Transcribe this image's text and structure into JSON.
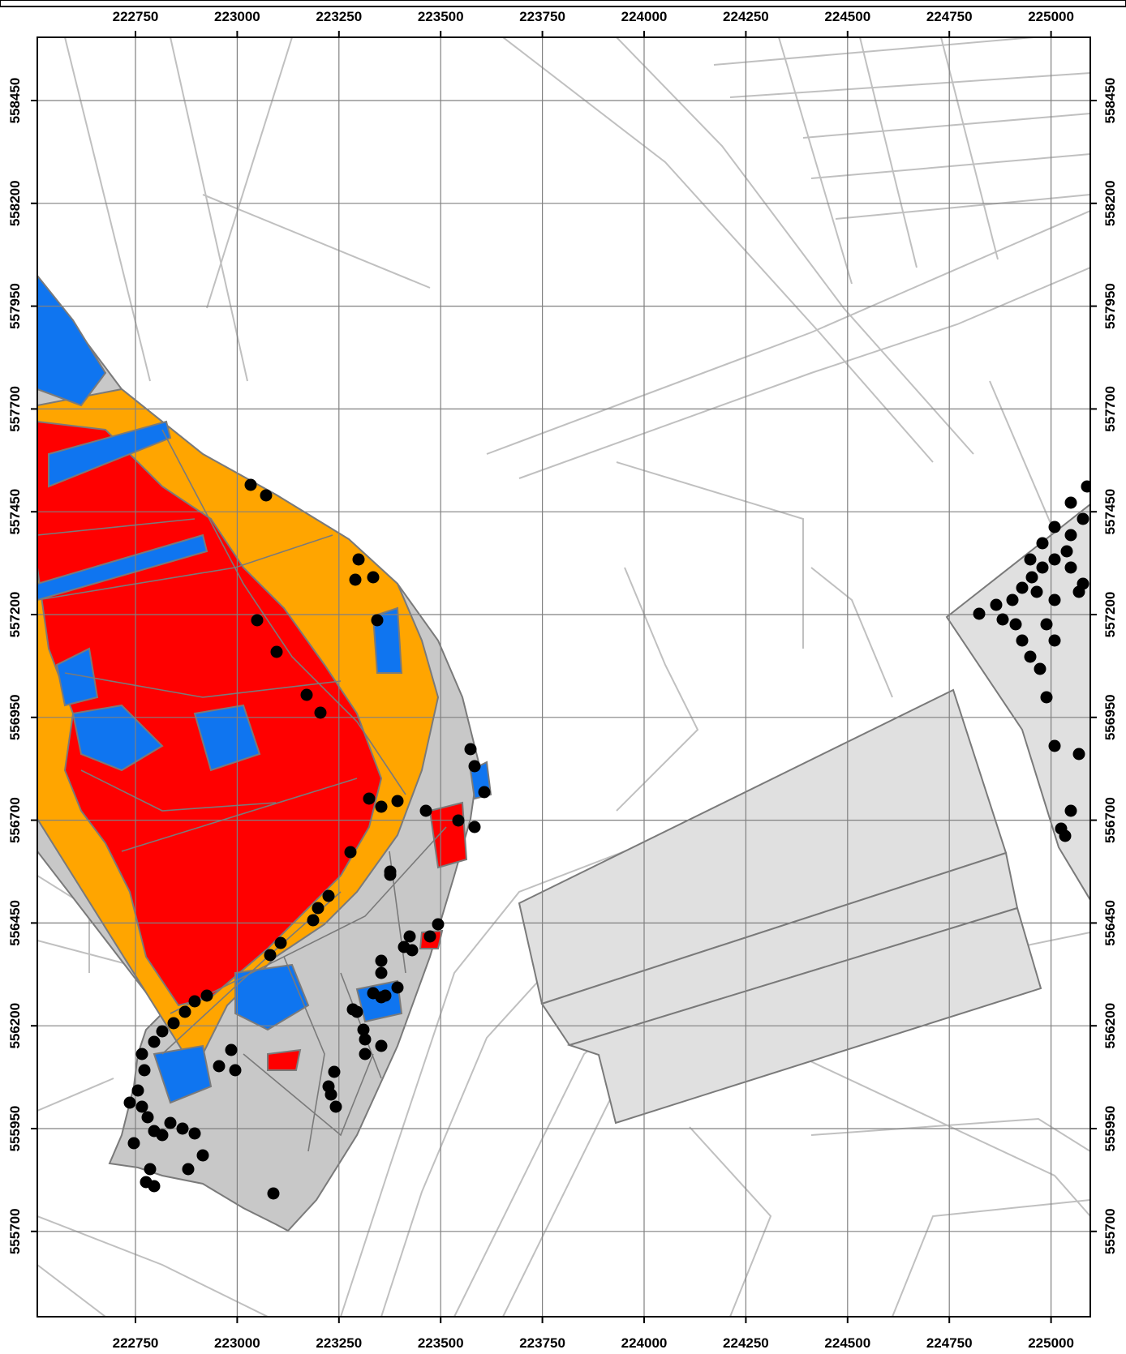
{
  "map": {
    "x_ticks": [
      "222750",
      "223000",
      "223250",
      "223500",
      "223750",
      "224000",
      "224250",
      "224500",
      "224750",
      "225000"
    ],
    "y_ticks": [
      "558450",
      "558200",
      "557950",
      "557700",
      "557450",
      "557200",
      "556950",
      "556700",
      "556450",
      "556200",
      "555950",
      "555700"
    ],
    "colors": {
      "habitat_red": "#ff0000",
      "habitat_orange": "#ffa500",
      "habitat_blue": "#0f75f0",
      "dark_grey_area": "#c8c8c8",
      "light_grey_area": "#e0e0e0",
      "outline": "#7a7a7a",
      "background_lines": "#c0c0c0",
      "grid": "#808080",
      "points": "#000000"
    }
  }
}
